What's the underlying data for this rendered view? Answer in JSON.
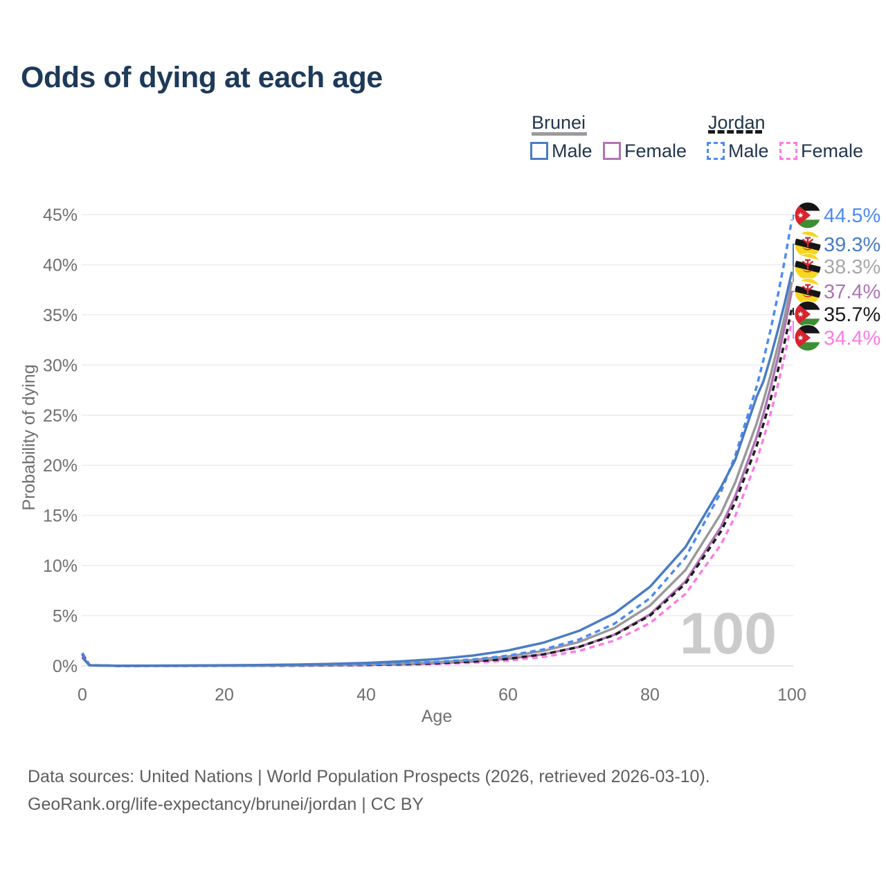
{
  "title": "Odds of dying at each age",
  "watermark": "100",
  "legend": {
    "groups": [
      {
        "country": "Brunei",
        "style": "solid",
        "items": [
          {
            "label": "Male",
            "color": "#4a7cc3"
          },
          {
            "label": "Female",
            "color": "#af74b5"
          }
        ]
      },
      {
        "country": "Jordan",
        "style": "dashed",
        "items": [
          {
            "label": "Male",
            "color": "#4b8bf4"
          },
          {
            "label": "Female",
            "color": "#fc7ce4"
          }
        ]
      }
    ]
  },
  "footer": {
    "line1": "Data sources: United Nations | World Population Prospects (2026, retrieved 2026-03-10).",
    "line2": "GeoRank.org/life-expectancy/brunei/jordan | CC BY"
  },
  "chart_data": {
    "type": "line",
    "title": "Odds of dying at each age",
    "xlabel": "Age",
    "ylabel": "Probability of dying",
    "xlim": [
      0,
      100
    ],
    "ylim": [
      0,
      45
    ],
    "x_ticks": [
      0,
      20,
      40,
      60,
      80,
      100
    ],
    "y_ticks_percent": [
      0,
      5,
      10,
      15,
      20,
      25,
      30,
      35,
      40,
      45
    ],
    "grid": true,
    "legend_position": "top-right",
    "current_age_frame": "100",
    "ages": [
      0,
      1,
      5,
      10,
      15,
      20,
      25,
      30,
      35,
      40,
      45,
      50,
      55,
      60,
      65,
      70,
      75,
      80,
      85,
      90,
      92,
      95,
      96,
      97,
      98,
      99,
      100
    ],
    "series": [
      {
        "name": "Jordan Male",
        "country": "jordan",
        "sex": "male",
        "color": "#4b8bf4",
        "dash": true,
        "end_label": "44.5%",
        "end_value": 44.5,
        "values": [
          1.3,
          0.08,
          0.01,
          0.01,
          0.015,
          0.023,
          0.038,
          0.06,
          0.097,
          0.155,
          0.248,
          0.4,
          0.64,
          1.02,
          1.64,
          2.63,
          4.21,
          6.75,
          10.81,
          17.33,
          20.92,
          27.76,
          30.51,
          33.53,
          36.85,
          40.49,
          44.5
        ]
      },
      {
        "name": "Brunei Male",
        "country": "brunei",
        "sex": "male",
        "color": "#4a7cc3",
        "dash": false,
        "end_label": "39.3%",
        "end_value": 39.3,
        "values": [
          0.9,
          0.06,
          0.017,
          0.026,
          0.039,
          0.059,
          0.089,
          0.134,
          0.2,
          0.3,
          0.455,
          0.683,
          1.03,
          1.54,
          2.32,
          3.49,
          5.24,
          7.88,
          11.85,
          17.81,
          20.51,
          26.77,
          28.39,
          30.79,
          33.4,
          36.23,
          39.3
        ]
      },
      {
        "name": "Brunei Total",
        "country": "brunei",
        "sex": "total",
        "color": "#999999",
        "dash": false,
        "end_label": "38.3%",
        "end_value": 38.3,
        "label_color": "#a8a8a8",
        "values": [
          0.85,
          0.05,
          0.006,
          0.009,
          0.015,
          0.023,
          0.037,
          0.059,
          0.093,
          0.148,
          0.235,
          0.374,
          0.594,
          0.943,
          1.5,
          2.38,
          3.78,
          6.01,
          9.55,
          15.17,
          18.26,
          24.11,
          26.44,
          29.01,
          31.82,
          34.91,
          38.3
        ]
      },
      {
        "name": "Brunei Female",
        "country": "brunei",
        "sex": "female",
        "color": "#af74b5",
        "dash": false,
        "end_label": "37.4%",
        "end_value": 37.4,
        "values": [
          0.8,
          0.04,
          0.003,
          0.005,
          0.008,
          0.013,
          0.022,
          0.036,
          0.059,
          0.097,
          0.159,
          0.261,
          0.429,
          0.705,
          1.157,
          1.9,
          3.12,
          5.13,
          8.43,
          13.85,
          16.9,
          22.76,
          25.14,
          27.77,
          30.66,
          33.87,
          37.4
        ]
      },
      {
        "name": "Jordan Total",
        "country": "jordan",
        "sex": "total",
        "color": "#1c1c1c",
        "dash": true,
        "end_label": "35.7%",
        "end_value": 35.7,
        "values": [
          1.2,
          0.07,
          0.003,
          0.005,
          0.009,
          0.014,
          0.023,
          0.037,
          0.061,
          0.1,
          0.163,
          0.266,
          0.433,
          0.707,
          1.155,
          1.885,
          3.08,
          5.02,
          8.2,
          13.4,
          16.29,
          21.87,
          24.12,
          26.6,
          29.35,
          32.37,
          35.7
        ]
      },
      {
        "name": "Jordan Female",
        "country": "jordan",
        "sex": "female",
        "color": "#fc7ce4",
        "dash": true,
        "end_label": "34.4%",
        "end_value": 34.4,
        "values": [
          1.1,
          0.06,
          0.002,
          0.003,
          0.006,
          0.008,
          0.014,
          0.023,
          0.039,
          0.065,
          0.11,
          0.185,
          0.312,
          0.527,
          0.888,
          1.5,
          2.53,
          4.26,
          7.18,
          12.1,
          14.91,
          20.41,
          22.65,
          25.14,
          27.91,
          30.99,
          34.4
        ]
      }
    ]
  }
}
